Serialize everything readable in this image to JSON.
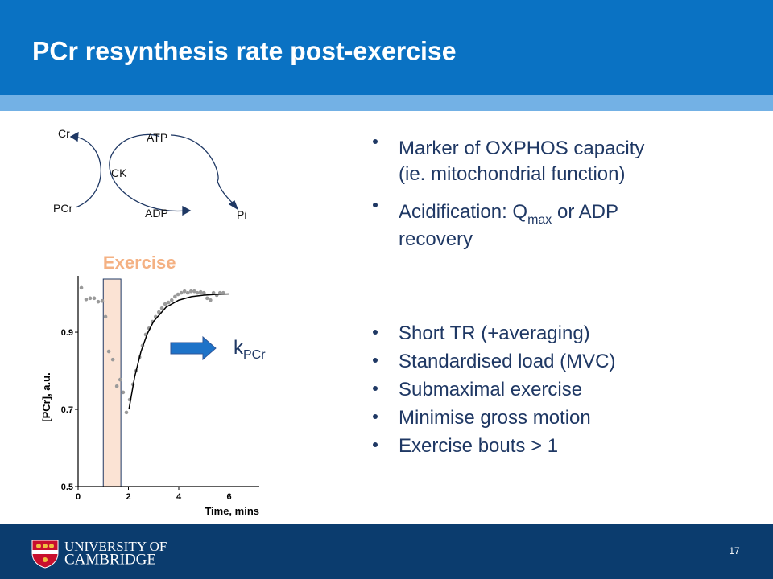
{
  "title": "PCr resynthesis rate post-exercise",
  "diagram": {
    "cr": "Cr",
    "atp": "ATP",
    "ck": "CK",
    "pcr": "PCr",
    "adp": "ADP",
    "pi": "Pi"
  },
  "bullets_top": [
    {
      "lines": [
        "Marker of OXPHOS capacity",
        "(ie. mitochondrial function)"
      ]
    },
    {
      "line1": [
        "Acidification: Q",
        "max",
        " or ADP"
      ],
      "line2": "recovery"
    }
  ],
  "bullets_bottom": [
    "Short TR (+averaging)",
    "Standardised load (MVC)",
    "Submaximal exercise",
    "Minimise gross motion",
    "Exercise bouts > 1"
  ],
  "rate_label": {
    "main": "k",
    "sub": "PCr"
  },
  "chart_data": {
    "type": "scatter",
    "annotation": "Exercise",
    "exercise_band": [
      1.0,
      1.7
    ],
    "xlabel": "Time, mins",
    "ylabel": "[PCr], a.u.",
    "xlim": [
      0,
      7.2
    ],
    "ylim": [
      0.5,
      1.046
    ],
    "xticks": [
      0,
      2,
      4,
      6
    ],
    "yticks": [
      0.5,
      0.7,
      0.9
    ],
    "series": [
      {
        "mark": "scatter",
        "color": "#9a9a9a",
        "x": [
          0.13,
          0.32,
          0.48,
          0.64,
          0.8,
          0.96,
          1.09,
          1.22,
          1.38,
          1.54,
          1.67,
          1.79,
          1.92,
          2.05,
          2.18,
          2.31,
          2.44,
          2.56,
          2.69,
          2.82,
          2.95,
          3.08,
          3.21,
          3.33,
          3.46,
          3.59,
          3.72,
          3.85,
          3.97,
          4.1,
          4.23,
          4.36,
          4.49,
          4.62,
          4.74,
          4.87,
          5.0,
          5.13,
          5.26,
          5.38,
          5.51,
          5.64,
          5.77
        ],
        "values": [
          1.015,
          0.985,
          0.988,
          0.988,
          0.979,
          0.981,
          0.94,
          0.85,
          0.829,
          0.76,
          0.777,
          0.744,
          0.692,
          0.725,
          0.765,
          0.8,
          0.835,
          0.865,
          0.894,
          0.91,
          0.927,
          0.94,
          0.952,
          0.962,
          0.973,
          0.977,
          0.983,
          0.992,
          0.998,
          1.002,
          1.006,
          1.002,
          1.006,
          1.006,
          1.002,
          1.004,
          1.002,
          0.988,
          0.983,
          1.002,
          0.996,
          1.002,
          1.002
        ]
      },
      {
        "mark": "line",
        "color": "#000000",
        "x": [
          2.02,
          2.25,
          2.5,
          2.75,
          3.0,
          3.5,
          4.0,
          4.5,
          5.0,
          5.5,
          6.0
        ],
        "values": [
          0.7,
          0.785,
          0.85,
          0.896,
          0.928,
          0.965,
          0.983,
          0.992,
          0.996,
          0.998,
          0.999
        ]
      }
    ]
  },
  "footer": {
    "university_line1": "UNIVERSITY OF",
    "university_line2": "CAMBRIDGE",
    "page": "17"
  }
}
